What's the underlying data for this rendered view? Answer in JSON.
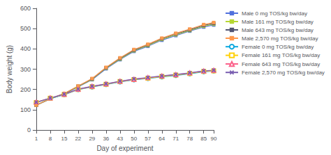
{
  "chart_data": {
    "type": "line",
    "x": [
      1,
      8,
      15,
      22,
      29,
      36,
      43,
      50,
      57,
      64,
      71,
      78,
      85,
      90
    ],
    "series": [
      {
        "name": "Male 0 mg TOS/kg bw/day",
        "marker": "square",
        "values": [
          122,
          153,
          177,
          213,
          248,
          302,
          347,
          388,
          413,
          443,
          466,
          488,
          508,
          518
        ]
      },
      {
        "name": "Male 161 mg TOS/kg bw/day",
        "marker": "square",
        "values": [
          122,
          154,
          178,
          215,
          250,
          305,
          350,
          391,
          417,
          447,
          470,
          491,
          512,
          522
        ]
      },
      {
        "name": "Male 643 mg TOS/kg bw/day",
        "marker": "square",
        "values": [
          123,
          155,
          179,
          216,
          252,
          307,
          353,
          394,
          420,
          450,
          474,
          494,
          516,
          526
        ]
      },
      {
        "name": "Male 2,570 mg TOS/kg bw/day",
        "marker": "square",
        "values": [
          123,
          155,
          180,
          217,
          254,
          309,
          356,
          397,
          423,
          453,
          477,
          498,
          520,
          530
        ]
      },
      {
        "name": "Female 0 mg TOS/kg bw/day",
        "marker": "open_circle",
        "values": [
          136,
          156,
          174,
          199,
          212,
          224,
          237,
          247,
          254,
          262,
          269,
          277,
          287,
          291
        ]
      },
      {
        "name": "Female 161 mg TOS/kg bw/day",
        "marker": "open_square",
        "values": [
          136,
          157,
          175,
          200,
          214,
          226,
          239,
          249,
          256,
          264,
          271,
          279,
          289,
          292
        ]
      },
      {
        "name": "Female 643 mg TOS/kg bw/day",
        "marker": "open_triangle",
        "values": [
          137,
          158,
          176,
          201,
          215,
          227,
          240,
          250,
          258,
          266,
          273,
          281,
          291,
          294
        ]
      },
      {
        "name": "Female 2,570 mg TOS/kg bw/day",
        "marker": "x",
        "values": [
          137,
          158,
          177,
          202,
          216,
          228,
          241,
          252,
          259,
          267,
          274,
          282,
          292,
          295
        ]
      }
    ],
    "xlabel": "Day of experiment",
    "ylabel": "Body weight (g)",
    "xlim": [
      1,
      90
    ],
    "xticks": [
      1,
      8,
      15,
      22,
      29,
      36,
      43,
      50,
      57,
      64,
      71,
      78,
      85,
      90
    ],
    "ylim": [
      0,
      600
    ],
    "yticks": [
      0,
      100,
      200,
      300,
      400,
      500,
      600
    ],
    "legend": "right",
    "grid": false
  }
}
